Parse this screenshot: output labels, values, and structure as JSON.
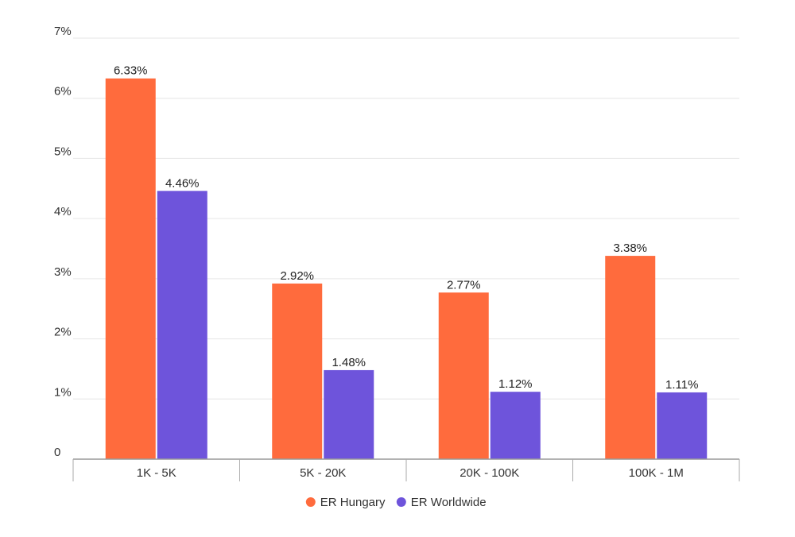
{
  "chart_data": {
    "type": "bar",
    "categories": [
      "1K - 5K",
      "5K - 20K",
      "20K - 100K",
      "100K - 1M"
    ],
    "series": [
      {
        "name": "ER Hungary",
        "values": [
          6.33,
          2.92,
          2.77,
          3.38
        ],
        "labels": [
          "6.33%",
          "2.92%",
          "2.77%",
          "3.38%"
        ],
        "color": "#ff6b3d"
      },
      {
        "name": "ER Worldwide",
        "values": [
          4.46,
          1.48,
          1.12,
          1.11
        ],
        "labels": [
          "4.46%",
          "1.48%",
          "1.12%",
          "1.11%"
        ],
        "color": "#6e54db"
      }
    ],
    "yticks": [
      {
        "value": 0,
        "label": "0"
      },
      {
        "value": 1,
        "label": "1%"
      },
      {
        "value": 2,
        "label": "2%"
      },
      {
        "value": 3,
        "label": "3%"
      },
      {
        "value": 4,
        "label": "4%"
      },
      {
        "value": 5,
        "label": "5%"
      },
      {
        "value": 6,
        "label": "6%"
      },
      {
        "value": 7,
        "label": "7%"
      }
    ],
    "ylim": [
      0,
      7
    ],
    "grid": true,
    "legend_position": "bottom-center",
    "colors": {
      "gridline": "#e6e6e6",
      "axis": "#999999"
    }
  }
}
